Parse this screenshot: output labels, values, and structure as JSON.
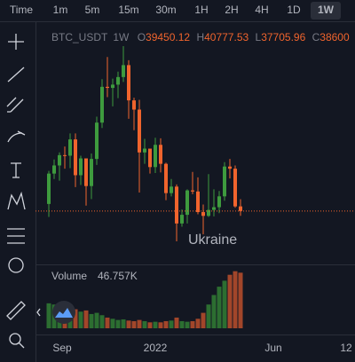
{
  "toolbar": {
    "intervals": [
      "Time",
      "1m",
      "5m",
      "15m",
      "30m",
      "1H",
      "2H",
      "4H",
      "1D",
      "1W"
    ],
    "active_index": 9
  },
  "legend": {
    "symbol": "BTC_USDT",
    "interval": "1W",
    "o": "O",
    "h": "H",
    "l": "L",
    "c": "C"
  },
  "annotation": "Ukraine",
  "volume_legend": {
    "label": "Volume",
    "value": "46.757K"
  },
  "x_labels": [
    "Sep",
    "2022",
    "Jun",
    "12"
  ],
  "chart": {
    "type": "candlestick",
    "up_color": "#3e9b3e",
    "down_color": "#f0642d",
    "volume_up_color": "#2c6e31",
    "volume_down_color": "#a2462a",
    "candles": [
      {
        "open": 39900,
        "high": 46000,
        "low": 37500,
        "close": 45500
      },
      {
        "open": 45500,
        "high": 48100,
        "low": 44500,
        "close": 47000
      },
      {
        "open": 47000,
        "high": 49400,
        "low": 44200,
        "close": 48900
      },
      {
        "open": 48900,
        "high": 50500,
        "low": 46400,
        "close": 48800
      },
      {
        "open": 48800,
        "high": 52900,
        "low": 46500,
        "close": 51800
      },
      {
        "open": 51800,
        "high": 52900,
        "low": 43000,
        "close": 45200
      },
      {
        "open": 45200,
        "high": 48800,
        "low": 43400,
        "close": 48300
      },
      {
        "open": 48300,
        "high": 48300,
        "low": 39600,
        "close": 43200
      },
      {
        "open": 43200,
        "high": 49200,
        "low": 40800,
        "close": 48200
      },
      {
        "open": 48200,
        "high": 56000,
        "low": 47100,
        "close": 54900
      },
      {
        "open": 54900,
        "high": 62900,
        "low": 53900,
        "close": 61500
      },
      {
        "open": 61500,
        "high": 67000,
        "low": 59600,
        "close": 61300
      },
      {
        "open": 61300,
        "high": 63000,
        "low": 57900,
        "close": 61900
      },
      {
        "open": 61900,
        "high": 64300,
        "low": 59400,
        "close": 63300
      },
      {
        "open": 63300,
        "high": 69000,
        "low": 62400,
        "close": 65500
      },
      {
        "open": 65500,
        "high": 66400,
        "low": 55600,
        "close": 59000
      },
      {
        "open": 59000,
        "high": 59500,
        "low": 53500,
        "close": 57300
      },
      {
        "open": 57300,
        "high": 59100,
        "low": 42000,
        "close": 49400
      },
      {
        "open": 49400,
        "high": 51900,
        "low": 47300,
        "close": 50100
      },
      {
        "open": 50100,
        "high": 50100,
        "low": 45500,
        "close": 46700
      },
      {
        "open": 46700,
        "high": 52100,
        "low": 45600,
        "close": 50800
      },
      {
        "open": 50800,
        "high": 52000,
        "low": 45700,
        "close": 47300
      },
      {
        "open": 47300,
        "high": 47500,
        "low": 40600,
        "close": 41900
      },
      {
        "open": 41900,
        "high": 44500,
        "low": 41300,
        "close": 43100
      },
      {
        "open": 43100,
        "high": 43500,
        "low": 33000,
        "close": 36300
      },
      {
        "open": 36300,
        "high": 38900,
        "low": 35700,
        "close": 37900
      },
      {
        "open": 37900,
        "high": 42600,
        "low": 36300,
        "close": 42400
      },
      {
        "open": 42400,
        "high": 45800,
        "low": 41700,
        "close": 42200
      },
      {
        "open": 42200,
        "high": 44800,
        "low": 38000,
        "close": 38400
      },
      {
        "open": 38400,
        "high": 39800,
        "low": 34300,
        "close": 37700
      },
      {
        "open": 37700,
        "high": 45400,
        "low": 37500,
        "close": 38800
      },
      {
        "open": 38800,
        "high": 42600,
        "low": 37600,
        "close": 39300
      },
      {
        "open": 39300,
        "high": 42300,
        "low": 38200,
        "close": 41300
      },
      {
        "open": 41300,
        "high": 47600,
        "low": 40500,
        "close": 46800
      },
      {
        "open": 46800,
        "high": 48200,
        "low": 44600,
        "close": 46400
      },
      {
        "open": 46400,
        "high": 47000,
        "low": 39200,
        "close": 39450
      },
      {
        "open": 39450.12,
        "high": 40777.53,
        "low": 37705.96,
        "close": 38600
      }
    ],
    "volumes": [
      21000,
      20000,
      19000,
      17000,
      18000,
      16000,
      14000,
      15000,
      12000,
      13000,
      11000,
      9000,
      8000,
      7000,
      7500,
      6500,
      6000,
      7000,
      6000,
      5000,
      5500,
      5000,
      6000,
      6500,
      9000,
      6000,
      5500,
      6000,
      8000,
      13000,
      20000,
      28000,
      35000,
      40000,
      45000,
      48000,
      46757
    ]
  }
}
